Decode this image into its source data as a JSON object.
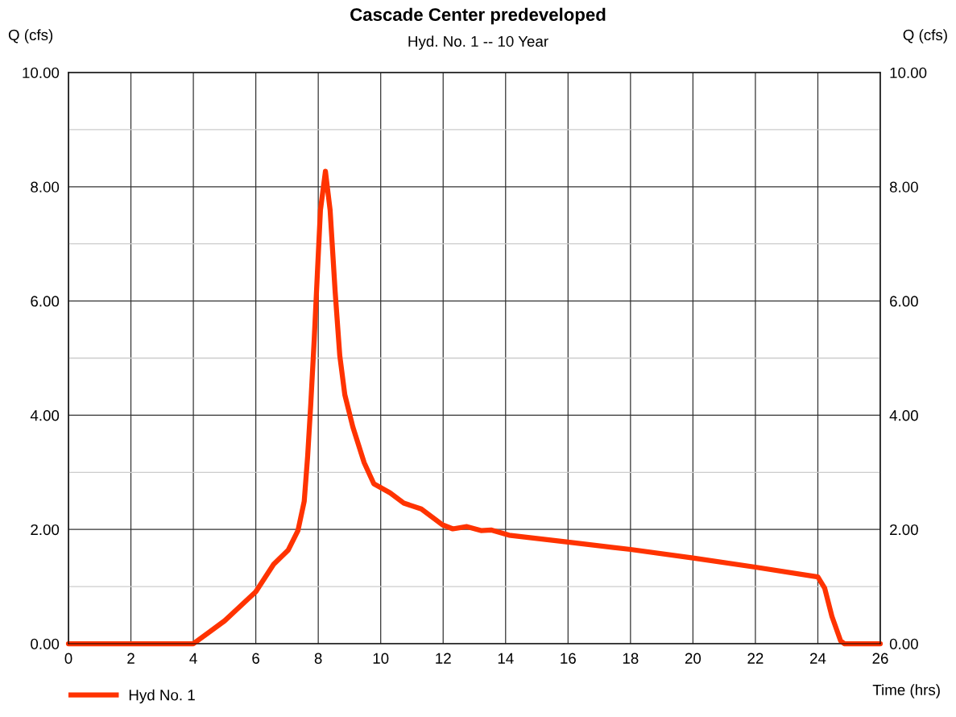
{
  "chart_data": {
    "type": "line",
    "title": "Cascade Center predeveloped",
    "subtitle": "Hyd. No. 1 -- 10 Year",
    "xlabel": "Time (hrs)",
    "ylabel": "Q (cfs)",
    "y2label": "Q (cfs)",
    "xlim": [
      0,
      26
    ],
    "xticks": [
      0,
      2,
      4,
      6,
      8,
      10,
      12,
      14,
      16,
      18,
      20,
      22,
      24,
      26
    ],
    "ylim": [
      0,
      10
    ],
    "yticks": [
      {
        "value": 0,
        "label": "0.00"
      },
      {
        "value": 1,
        "label": null
      },
      {
        "value": 2,
        "label": "2.00"
      },
      {
        "value": 3,
        "label": null
      },
      {
        "value": 4,
        "label": "4.00"
      },
      {
        "value": 5,
        "label": null
      },
      {
        "value": 6,
        "label": "6.00"
      },
      {
        "value": 7,
        "label": null
      },
      {
        "value": 8,
        "label": "8.00"
      },
      {
        "value": 9,
        "label": null
      },
      {
        "value": 10,
        "label": "10.00"
      }
    ],
    "y2lim": [
      0,
      10
    ],
    "y2ticks": [
      {
        "value": 0,
        "label": "0.00"
      },
      {
        "value": 2,
        "label": "2.00"
      },
      {
        "value": 4,
        "label": "4.00"
      },
      {
        "value": 6,
        "label": "6.00"
      },
      {
        "value": 8,
        "label": "8.00"
      },
      {
        "value": 10,
        "label": "10.00"
      }
    ],
    "grid": true,
    "legend": "bottom left",
    "marker": "none",
    "line_style": "solid",
    "series": [
      {
        "name": "Hyd No. 1",
        "color": "#ff3300",
        "x": [
          0,
          4,
          5.0,
          6.0,
          6.57,
          7.04,
          7.35,
          7.55,
          7.66,
          7.76,
          7.87,
          7.97,
          8.07,
          8.23,
          8.38,
          8.54,
          8.69,
          8.85,
          9.11,
          9.47,
          9.78,
          10.3,
          10.74,
          11.3,
          11.98,
          12.31,
          12.76,
          13.21,
          13.55,
          14.11,
          16,
          18,
          20,
          22,
          24,
          24.22,
          24.45,
          24.73,
          24.85,
          26
        ],
        "values": [
          0,
          0,
          0.4,
          0.91,
          1.39,
          1.64,
          1.98,
          2.49,
          3.28,
          4.19,
          5.32,
          6.46,
          7.59,
          8.27,
          7.59,
          6.17,
          5.04,
          4.36,
          3.79,
          3.17,
          2.8,
          2.64,
          2.46,
          2.36,
          2.08,
          2.01,
          2.05,
          1.98,
          1.99,
          1.9,
          1.78,
          1.65,
          1.5,
          1.34,
          1.17,
          0.97,
          0.48,
          0.05,
          0,
          0
        ]
      }
    ]
  }
}
